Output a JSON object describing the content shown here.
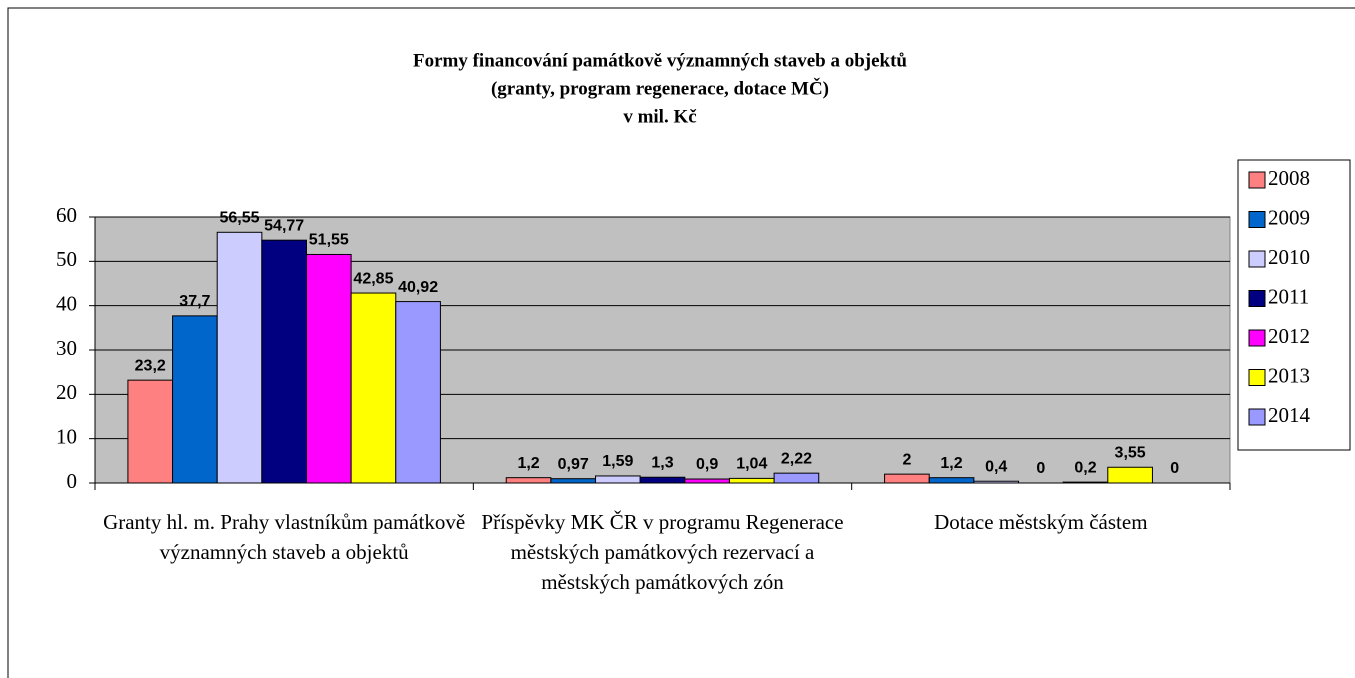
{
  "chart_data": {
    "type": "bar",
    "title": [
      "Formy financování památkově významných staveb a objektů",
      "(granty, program regenerace, dotace MČ)",
      "v mil. Kč"
    ],
    "categories": [
      "Granty hl. m. Prahy vlastníkům památkově významných staveb a objektů",
      "Příspěvky MK ČR v programu Regenerace městských památkových rezervací a městských památkových zón",
      "Dotace městským částem"
    ],
    "series": [
      {
        "name": "2008",
        "color": "#ff8080",
        "values": [
          23.2,
          1.2,
          2
        ],
        "value_labels": [
          "23,2",
          "1,2",
          "2"
        ]
      },
      {
        "name": "2009",
        "color": "#0066cc",
        "values": [
          37.7,
          0.97,
          1.2
        ],
        "value_labels": [
          "37,7",
          "0,97",
          "1,2"
        ]
      },
      {
        "name": "2010",
        "color": "#ccccff",
        "values": [
          56.55,
          1.59,
          0.4
        ],
        "value_labels": [
          "56,55",
          "1,59",
          "0,4"
        ]
      },
      {
        "name": "2011",
        "color": "#000080",
        "values": [
          54.77,
          1.3,
          0
        ],
        "value_labels": [
          "54,77",
          "1,3",
          "0"
        ]
      },
      {
        "name": "2012",
        "color": "#ff00ff",
        "values": [
          51.55,
          0.9,
          0.2
        ],
        "value_labels": [
          "51,55",
          "0,9",
          "0,2"
        ]
      },
      {
        "name": "2013",
        "color": "#ffff00",
        "values": [
          42.85,
          1.04,
          3.55
        ],
        "value_labels": [
          "42,85",
          "1,04",
          "3,55"
        ]
      },
      {
        "name": "2014",
        "color": "#9999ff",
        "values": [
          40.92,
          2.22,
          0
        ],
        "value_labels": [
          "40,92",
          "2,22",
          "0"
        ]
      }
    ],
    "ylim": [
      0,
      60
    ],
    "yticks": [
      0,
      10,
      20,
      30,
      40,
      50,
      60
    ],
    "grid": true,
    "legend": "right"
  }
}
